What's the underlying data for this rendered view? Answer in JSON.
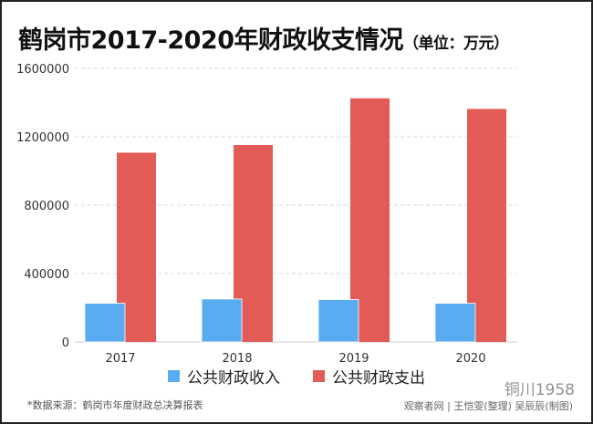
{
  "title": {
    "main": "鹤岗市2017-2020年财政收支情况",
    "unit": "（单位：万元）"
  },
  "colors": {
    "income": "#5aacf0",
    "expenditure": "#e35b57",
    "grid": "#d9d9d9"
  },
  "chart_data": {
    "type": "bar",
    "title": "鹤岗市2017-2020年财政收支情况（单位：万元）",
    "categories": [
      "2017",
      "2018",
      "2019",
      "2020"
    ],
    "series": [
      {
        "name": "公共财政收入",
        "values": [
          226000,
          251000,
          248000,
          226000
        ]
      },
      {
        "name": "公共财政支出",
        "values": [
          1107000,
          1152000,
          1425000,
          1363000
        ]
      }
    ],
    "ylim": [
      0,
      1600000
    ],
    "yticks": [
      "0",
      "400000",
      "800000",
      "1200000",
      "1600000"
    ],
    "grid": true,
    "legend": "bottom"
  },
  "footer": {
    "source": "*数据来源：鹤岗市年度财政总决算报表",
    "credit": "观察者网 | 王恺雯(整理) 吴辰辰(制图)",
    "watermark": "铜川1958"
  }
}
